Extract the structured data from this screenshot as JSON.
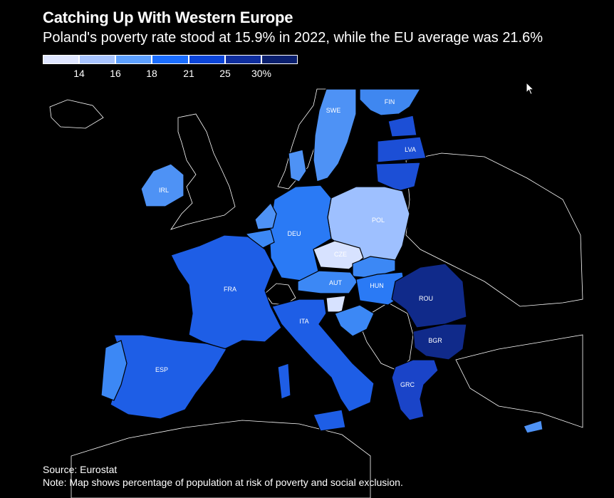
{
  "header": {
    "title": "Catching Up With Western Europe",
    "subtitle": "Poland's poverty rate stood at 15.9% in 2022, while the EU average was 21.6%"
  },
  "legend": {
    "colors": [
      "#dfe6ff",
      "#a8c4ff",
      "#5da0ff",
      "#1a6dff",
      "#0c45d9",
      "#0f2e9e",
      "#0a1f6e"
    ],
    "labels": [
      "14",
      "16",
      "18",
      "21",
      "25",
      "30%"
    ]
  },
  "countries": [
    {
      "code": "SWE",
      "color": "#4e92f5"
    },
    {
      "code": "FIN",
      "color": "#3f87f0"
    },
    {
      "code": "LVA",
      "color": "#1c4fd6"
    },
    {
      "code": "IRL",
      "color": "#4e92f5"
    },
    {
      "code": "POL",
      "color": "#9ec0ff"
    },
    {
      "code": "DEU",
      "color": "#2a7af5"
    },
    {
      "code": "CZE",
      "color": "#d7e2ff"
    },
    {
      "code": "AUT",
      "color": "#3c88f5"
    },
    {
      "code": "HUN",
      "color": "#2a7af5"
    },
    {
      "code": "FRA",
      "color": "#1e5ee6"
    },
    {
      "code": "ROU",
      "color": "#102a8a"
    },
    {
      "code": "ITA",
      "color": "#1e5ee6"
    },
    {
      "code": "BGR",
      "color": "#102a8a"
    },
    {
      "code": "ESP",
      "color": "#1e5ee6"
    },
    {
      "code": "GRC",
      "color": "#1a44c8"
    }
  ],
  "footer": {
    "source": "Source: Eurostat",
    "note": "Note: Map shows percentage of population at risk of poverty and social exclusion."
  }
}
